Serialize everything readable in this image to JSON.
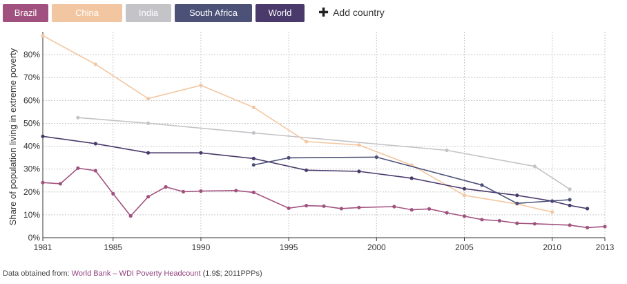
{
  "countries": [
    {
      "label": "Brazil",
      "color": "#a1517f"
    },
    {
      "label": "China",
      "color": "#f2c6a0"
    },
    {
      "label": "India",
      "color": "#c3c3c8"
    },
    {
      "label": "South Africa",
      "color": "#4c5178"
    },
    {
      "label": "World",
      "color": "#493a6b"
    }
  ],
  "add_country_label": "Add country",
  "source": {
    "prefix": "Data obtained from: ",
    "link_text": "World Bank – WDI Poverty Headcount",
    "suffix": " (1.9$; 2011PPPs)"
  },
  "chart_data": {
    "type": "line",
    "ylabel": "Share of population living in extreme poverty",
    "xlabel": "",
    "xlim": [
      1981,
      2013
    ],
    "ylim": [
      0,
      90
    ],
    "x_ticks": [
      "1981",
      "1985",
      "1990",
      "1995",
      "2000",
      "2005",
      "2010",
      "2013"
    ],
    "y_ticks": [
      "0%",
      "10%",
      "20%",
      "30%",
      "40%",
      "50%",
      "60%",
      "70%",
      "80%"
    ],
    "grid": true,
    "series": [
      {
        "name": "India",
        "color": "#c3c3c8",
        "points": [
          [
            1983,
            52.5
          ],
          [
            1987,
            50
          ],
          [
            1993,
            45.8
          ],
          [
            2004,
            38.2
          ],
          [
            2009,
            31.2
          ],
          [
            2011,
            21.2
          ]
        ]
      },
      {
        "name": "China",
        "color": "#f2c6a0",
        "points": [
          [
            1981,
            88.3
          ],
          [
            1984,
            75.8
          ],
          [
            1987,
            60.8
          ],
          [
            1990,
            66.6
          ],
          [
            1993,
            57
          ],
          [
            1996,
            42
          ],
          [
            1999,
            40.5
          ],
          [
            2002,
            31.7
          ],
          [
            2005,
            18.5
          ],
          [
            2008,
            14.7
          ],
          [
            2010,
            11.2
          ]
        ]
      },
      {
        "name": "World",
        "color": "#493a6b",
        "points": [
          [
            1981,
            44.3
          ],
          [
            1984,
            41.1
          ],
          [
            1987,
            37.1
          ],
          [
            1990,
            37.1
          ],
          [
            1993,
            34.6
          ],
          [
            1996,
            29.5
          ],
          [
            1999,
            29
          ],
          [
            2002,
            26
          ],
          [
            2005,
            21.4
          ],
          [
            2008,
            18.5
          ],
          [
            2010,
            16
          ],
          [
            2011,
            14.1
          ],
          [
            2012,
            12.7
          ]
        ]
      },
      {
        "name": "South Africa",
        "color": "#4c5178",
        "points": [
          [
            1993,
            31.8
          ],
          [
            1995,
            34.9
          ],
          [
            2000,
            35.2
          ],
          [
            2006,
            23
          ],
          [
            2008,
            15
          ],
          [
            2011,
            16.6
          ]
        ]
      },
      {
        "name": "Brazil",
        "color": "#a1517f",
        "points": [
          [
            1981,
            24.1
          ],
          [
            1982,
            23.6
          ],
          [
            1983,
            30.4
          ],
          [
            1984,
            29.3
          ],
          [
            1985,
            19.2
          ],
          [
            1986,
            9.5
          ],
          [
            1987,
            17.9
          ],
          [
            1988,
            22.2
          ],
          [
            1989,
            20.1
          ],
          [
            1990,
            20.4
          ],
          [
            1992,
            20.6
          ],
          [
            1993,
            19.8
          ],
          [
            1995,
            12.9
          ],
          [
            1996,
            14
          ],
          [
            1997,
            13.8
          ],
          [
            1998,
            12.7
          ],
          [
            1999,
            13.2
          ],
          [
            2001,
            13.6
          ],
          [
            2002,
            12.2
          ],
          [
            2003,
            12.6
          ],
          [
            2004,
            10.9
          ],
          [
            2005,
            9.4
          ],
          [
            2006,
            7.9
          ],
          [
            2007,
            7.4
          ],
          [
            2008,
            6.3
          ],
          [
            2009,
            6.1
          ],
          [
            2011,
            5.5
          ],
          [
            2012,
            4.4
          ],
          [
            2013,
            4.9
          ]
        ]
      }
    ]
  }
}
